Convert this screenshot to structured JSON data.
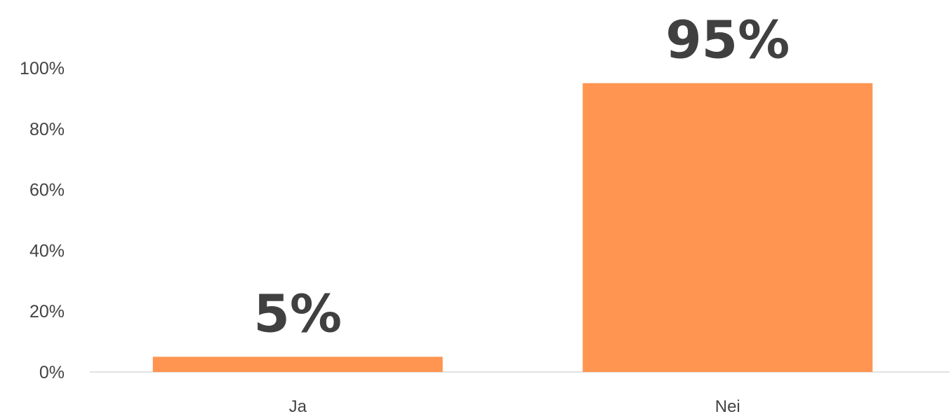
{
  "chart_data": {
    "type": "bar",
    "categories": [
      "Ja",
      "Nei"
    ],
    "values": [
      5,
      95
    ],
    "data_labels": [
      "5%",
      "95%"
    ],
    "y_ticks": [
      "0%",
      "20%",
      "40%",
      "60%",
      "80%",
      "100%"
    ],
    "y_tick_values": [
      0,
      20,
      40,
      60,
      80,
      100
    ],
    "ylim": [
      0,
      100
    ],
    "title": "",
    "xlabel": "",
    "ylabel": "",
    "grid": false,
    "legend": "none",
    "colors": {
      "bar": "#FF9550",
      "axis": "#D9D9D9",
      "text": "#444444",
      "data_label": "#404040"
    }
  }
}
